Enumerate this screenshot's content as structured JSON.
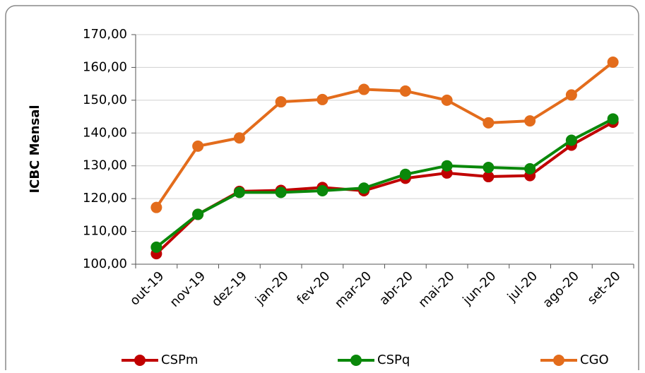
{
  "chart_data": {
    "type": "line",
    "y_label": "ICBC Mensal",
    "categories": [
      "out-19",
      "nov-19",
      "dez-19",
      "jan-20",
      "fev-20",
      "mar-20",
      "abr-20",
      "mai-20",
      "jun-20",
      "jul-20",
      "ago-20",
      "set-20"
    ],
    "series": [
      {
        "name": "CSPm",
        "color": "#c00000",
        "values": [
          103.2,
          115.2,
          122.2,
          122.5,
          123.4,
          122.4,
          126.2,
          127.8,
          126.7,
          127.0,
          136.3,
          143.3
        ]
      },
      {
        "name": "CSPq",
        "color": "#0a880a",
        "values": [
          105.2,
          115.2,
          121.9,
          121.9,
          122.4,
          123.2,
          127.4,
          130.0,
          129.5,
          129.1,
          137.8,
          144.3
        ]
      },
      {
        "name": "CGO",
        "color": "#e36c1c",
        "values": [
          117.3,
          136.0,
          138.5,
          149.5,
          150.2,
          153.3,
          152.8,
          150.0,
          143.1,
          143.7,
          151.6,
          161.6
        ]
      }
    ],
    "ylim": [
      100,
      170
    ],
    "yticks": [
      {
        "value": 100,
        "label": "100,00"
      },
      {
        "value": 110,
        "label": "110,00"
      },
      {
        "value": 120,
        "label": "120,00"
      },
      {
        "value": 130,
        "label": "130,00"
      },
      {
        "value": 140,
        "label": "140,00"
      },
      {
        "value": 150,
        "label": "150,00"
      },
      {
        "value": 160,
        "label": "160,00"
      },
      {
        "value": 170,
        "label": "170,00"
      }
    ],
    "grid": true,
    "legend": "bottom"
  }
}
